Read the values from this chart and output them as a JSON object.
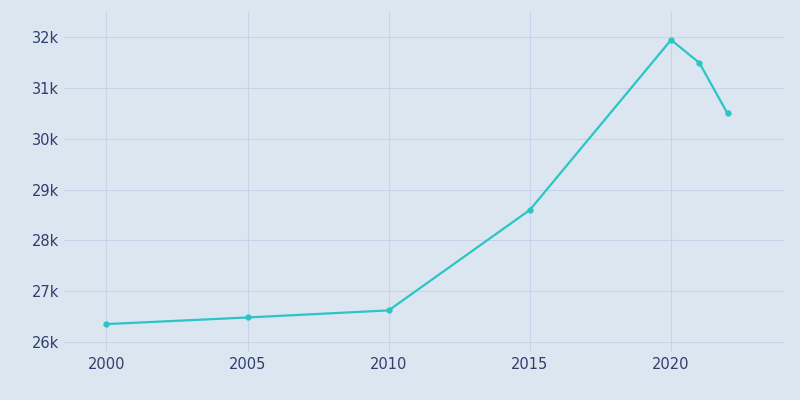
{
  "years": [
    2000,
    2005,
    2010,
    2015,
    2020,
    2021,
    2022
  ],
  "population": [
    26350,
    26480,
    26620,
    28600,
    31950,
    31500,
    30500
  ],
  "line_color": "#2bc5c5",
  "marker": "o",
  "marker_size": 3.5,
  "bg_color": "#dce6f0",
  "plot_bg_color": "#dce6f0",
  "grid_color": "#c5d4e8",
  "ylim": [
    25800,
    32500
  ],
  "xlim": [
    1998.5,
    2024
  ],
  "xticks": [
    2000,
    2005,
    2010,
    2015,
    2020
  ],
  "yticks": [
    26000,
    27000,
    28000,
    29000,
    30000,
    31000,
    32000
  ],
  "tick_color": "#2e3e6e",
  "tick_fontsize": 10.5,
  "linewidth": 1.6
}
